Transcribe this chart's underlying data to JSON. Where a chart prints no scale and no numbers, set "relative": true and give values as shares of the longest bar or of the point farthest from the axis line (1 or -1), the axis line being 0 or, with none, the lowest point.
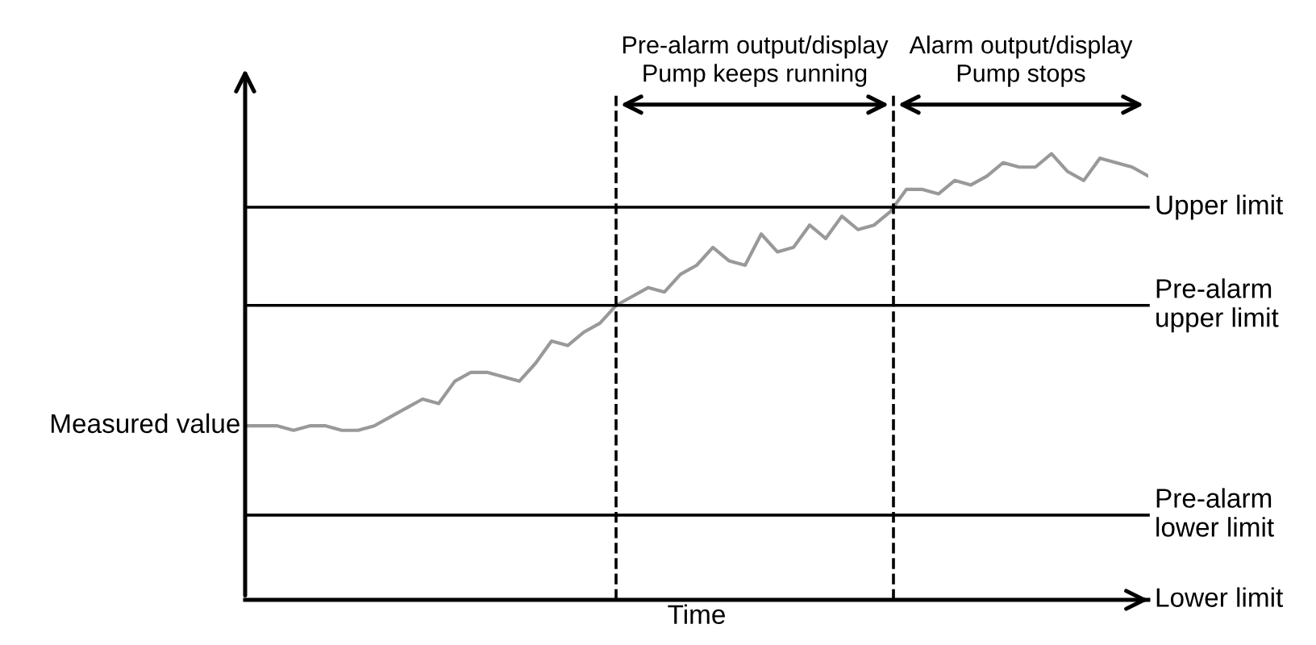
{
  "chart_data": {
    "type": "line",
    "relative": true,
    "xlabel": "Time",
    "ylabel": "Measured value",
    "categories": [
      null,
      null,
      null,
      null,
      null,
      null,
      null,
      null,
      null,
      null,
      null,
      null,
      null,
      null,
      null,
      null,
      null,
      null,
      null,
      null,
      null,
      null,
      null,
      null,
      null,
      null,
      null,
      null,
      null,
      null,
      null,
      null,
      null,
      null,
      null,
      null,
      null,
      null,
      null,
      null,
      null,
      null,
      null,
      null,
      null,
      null,
      null,
      null,
      null,
      null,
      null,
      null,
      null,
      null,
      null,
      null,
      null
    ],
    "series": [
      {
        "color": "#999999",
        "values": [
          0.39,
          0.39,
          0.39,
          0.38,
          0.39,
          0.39,
          0.38,
          0.38,
          0.39,
          0.41,
          0.43,
          0.45,
          0.44,
          0.49,
          0.51,
          0.51,
          0.5,
          0.49,
          0.53,
          0.58,
          0.57,
          0.6,
          0.62,
          0.66,
          0.68,
          0.7,
          0.69,
          0.73,
          0.75,
          0.79,
          0.76,
          0.75,
          0.82,
          0.78,
          0.79,
          0.84,
          0.81,
          0.86,
          0.83,
          0.84,
          0.87,
          0.92,
          0.92,
          0.91,
          0.94,
          0.93,
          0.95,
          0.98,
          0.97,
          0.97,
          1.0,
          0.96,
          0.94,
          0.99,
          0.98,
          0.97,
          0.95
        ]
      }
    ],
    "ref_lines": [
      {
        "axis": "y",
        "value": 0.88,
        "label": "Upper limit",
        "color": "#000000",
        "line_style": "solid"
      },
      {
        "axis": "y",
        "value": 0.66,
        "label": "Pre-alarm\nupper limit",
        "color": "#000000",
        "line_style": "solid"
      },
      {
        "axis": "y",
        "value": 0.19,
        "label": "Pre-alarm\nlower limit",
        "color": "#000000",
        "line_style": "solid"
      },
      {
        "axis": "y",
        "value": 0,
        "label": "Lower limit",
        "color": "#000000",
        "line_style": "solid"
      }
    ],
    "annotations": [
      "Pre-alarm output/display\nPump keeps running",
      "Alarm output/display\nPump stops"
    ],
    "marker": "none",
    "line_style": "solid"
  }
}
